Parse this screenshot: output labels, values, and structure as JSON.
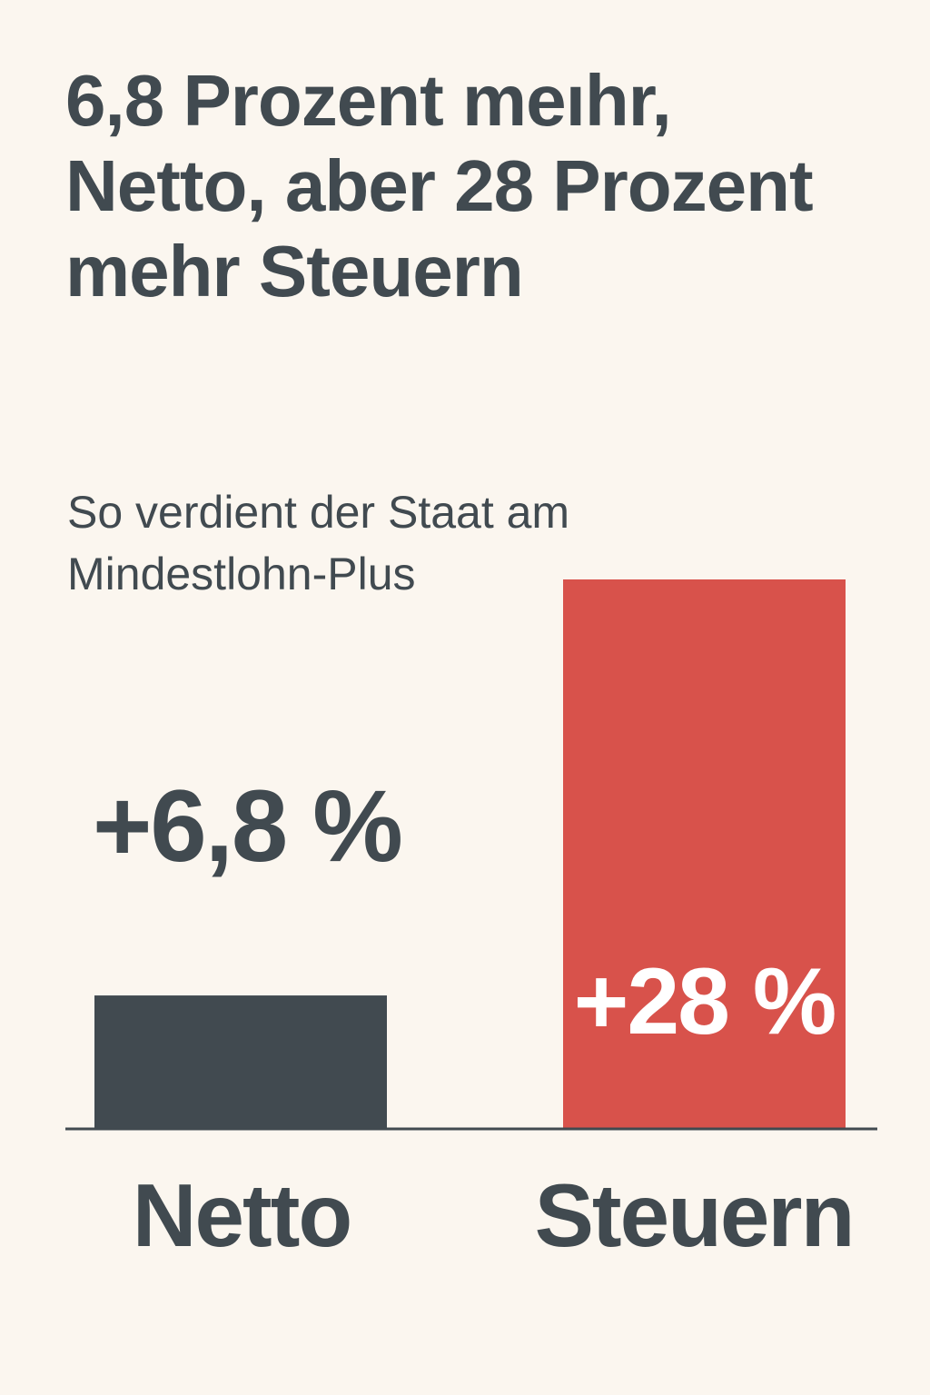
{
  "title": "6,8 Prozent meıhr, Netto, aber 28 Prozent mehr Steuern",
  "subtitle": "So verdient der Staat am Mindestlohn-Plus",
  "colors": {
    "background": "#FBF6EF",
    "text": "#414A50",
    "netto_bar": "#414A50",
    "steuern_bar": "#D8524B",
    "label_on_bar": "#FFFFFF"
  },
  "chart_data": {
    "type": "bar",
    "categories": [
      "Netto",
      "Steuern"
    ],
    "values": [
      6.8,
      28
    ],
    "data_labels": [
      "+6,8 %",
      "+28 %"
    ],
    "unit": "%",
    "ylim": [
      0,
      28
    ],
    "grid": false,
    "legend": "none"
  }
}
